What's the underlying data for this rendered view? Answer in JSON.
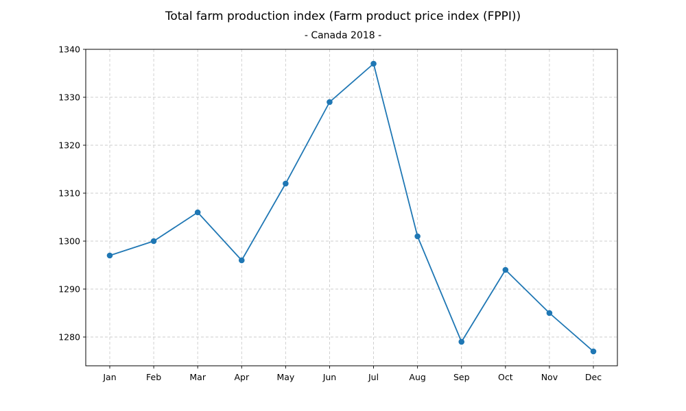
{
  "chart_data": {
    "type": "line",
    "title": "Total farm production index (Farm product price index (FPPI))",
    "subtitle": "- Canada 2018 -",
    "xlabel": "",
    "ylabel": "",
    "categories": [
      "Jan",
      "Feb",
      "Mar",
      "Apr",
      "May",
      "Jun",
      "Jul",
      "Aug",
      "Sep",
      "Oct",
      "Nov",
      "Dec"
    ],
    "series": [
      {
        "values": [
          1297,
          1300,
          1306,
          1296,
          1312,
          1329,
          1337,
          1301,
          1279,
          1294,
          1285,
          1277
        ]
      }
    ],
    "ylim": [
      1274,
      1340
    ],
    "yticks": [
      1280,
      1290,
      1300,
      1310,
      1320,
      1330,
      1340
    ],
    "grid": true,
    "line_color": "#1f77b4"
  }
}
